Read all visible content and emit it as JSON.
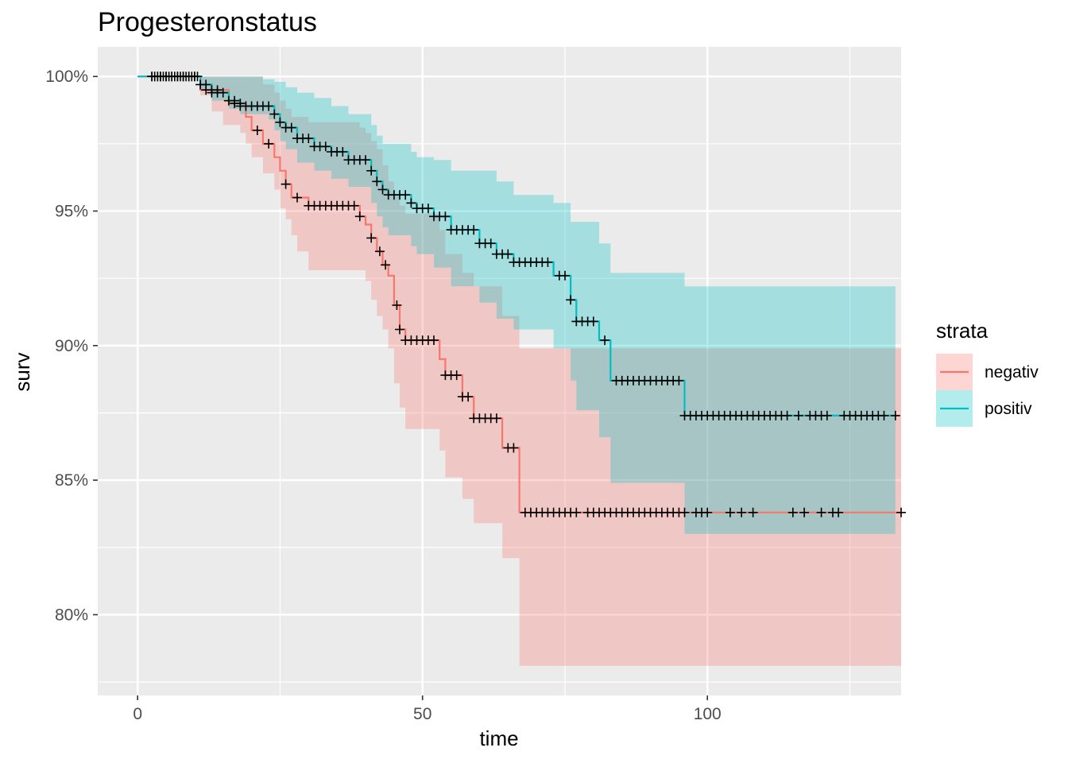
{
  "chart_data": {
    "type": "line",
    "title": "Progesteronstatus",
    "xlabel": "time",
    "ylabel": "surv",
    "xlim": [
      -7,
      134
    ],
    "ylim": [
      77,
      101.1
    ],
    "x_ticks": [
      {
        "value": 0,
        "label": "0"
      },
      {
        "value": 50,
        "label": "50"
      },
      {
        "value": 100,
        "label": "100"
      }
    ],
    "x_minor_ticks": [
      25,
      75,
      125
    ],
    "y_ticks": [
      {
        "value": 80,
        "label": "80%"
      },
      {
        "value": 85,
        "label": "85%"
      },
      {
        "value": 90,
        "label": "90%"
      },
      {
        "value": 95,
        "label": "95%"
      },
      {
        "value": 100,
        "label": "100%"
      }
    ],
    "y_minor_ticks": [
      77.5,
      82.5,
      87.5,
      92.5,
      97.5
    ],
    "grid": true,
    "legend": {
      "title": "strata",
      "position": "right",
      "entries": [
        {
          "label": "negativ",
          "color": "#F8766D"
        },
        {
          "label": "positiv",
          "color": "#00BFC4"
        }
      ]
    },
    "series": [
      {
        "name": "negativ",
        "color": "#F8766D",
        "survival": [
          [
            0,
            100
          ],
          [
            11,
            99.5
          ],
          [
            16,
            99
          ],
          [
            19,
            98.5
          ],
          [
            20,
            98
          ],
          [
            22,
            97.5
          ],
          [
            24,
            97
          ],
          [
            25,
            96.5
          ],
          [
            26,
            96
          ],
          [
            27,
            95.5
          ],
          [
            30,
            95.2
          ],
          [
            39,
            94.8
          ],
          [
            40,
            94.5
          ],
          [
            41,
            94
          ],
          [
            42,
            93.5
          ],
          [
            43,
            93
          ],
          [
            44,
            92.6
          ],
          [
            45,
            91.5
          ],
          [
            46,
            90.6
          ],
          [
            47,
            90.2
          ],
          [
            53,
            89.5
          ],
          [
            54,
            88.9
          ],
          [
            57,
            88.1
          ],
          [
            59,
            87.3
          ],
          [
            64,
            86.2
          ],
          [
            67,
            83.8
          ],
          [
            134,
            83.8
          ]
        ],
        "lower": [
          [
            0,
            100
          ],
          [
            11,
            99.3
          ],
          [
            13,
            98.7
          ],
          [
            15,
            98.2
          ],
          [
            18,
            97.9
          ],
          [
            19,
            97.5
          ],
          [
            20,
            97
          ],
          [
            22,
            96.4
          ],
          [
            24,
            95.8
          ],
          [
            25,
            95.1
          ],
          [
            26,
            94.7
          ],
          [
            27,
            94.1
          ],
          [
            28,
            93.5
          ],
          [
            30,
            92.8
          ],
          [
            40,
            92.4
          ],
          [
            41,
            91.7
          ],
          [
            42,
            91.1
          ],
          [
            43,
            90.6
          ],
          [
            44,
            89.9
          ],
          [
            45,
            88.6
          ],
          [
            46,
            87.7
          ],
          [
            47,
            86.9
          ],
          [
            53,
            86.1
          ],
          [
            54,
            85.1
          ],
          [
            57,
            84.3
          ],
          [
            59,
            83.4
          ],
          [
            64,
            82.1
          ],
          [
            67,
            78.1
          ],
          [
            134,
            78.1
          ]
        ],
        "upper": [
          [
            0,
            100
          ],
          [
            20,
            100
          ],
          [
            22,
            99.7
          ],
          [
            24,
            99.4
          ],
          [
            25,
            99.1
          ],
          [
            26,
            98.8
          ],
          [
            27,
            98.5
          ],
          [
            30,
            98.3
          ],
          [
            39,
            98.1
          ],
          [
            40,
            97.9
          ],
          [
            41,
            97.6
          ],
          [
            42,
            97.3
          ],
          [
            43,
            96.7
          ],
          [
            44,
            96.1
          ],
          [
            45,
            95.6
          ],
          [
            46,
            95.2
          ],
          [
            47,
            94.9
          ],
          [
            53,
            94.3
          ],
          [
            54,
            93.4
          ],
          [
            57,
            92.7
          ],
          [
            59,
            92.2
          ],
          [
            64,
            91.1
          ],
          [
            67,
            89.9
          ],
          [
            134,
            89.9
          ]
        ],
        "censored": [
          2.5,
          3,
          3.5,
          4,
          5,
          6,
          7,
          8,
          9,
          10,
          12,
          13,
          14,
          17,
          18,
          21,
          23,
          26,
          28,
          30,
          31,
          32,
          33,
          34,
          35,
          36,
          37,
          38,
          39,
          41,
          42.5,
          43.5,
          45.5,
          46,
          47,
          48,
          49,
          50,
          51,
          52,
          54,
          55,
          56,
          57,
          58,
          59,
          60,
          61,
          62,
          63,
          65,
          66,
          68,
          69,
          70,
          71,
          72,
          73,
          74,
          75,
          76,
          77,
          79,
          80,
          81,
          82,
          83,
          84,
          85,
          86,
          87,
          88,
          89,
          90,
          91,
          92,
          93,
          94,
          95,
          96,
          98,
          99,
          100,
          104,
          106,
          108,
          115,
          117,
          120,
          122,
          123,
          134
        ]
      },
      {
        "name": "positiv",
        "color": "#00BFC4",
        "survival": [
          [
            0,
            100
          ],
          [
            11,
            99.7
          ],
          [
            13,
            99.4
          ],
          [
            16,
            99.1
          ],
          [
            18,
            98.9
          ],
          [
            23,
            98.9
          ],
          [
            24,
            98.6
          ],
          [
            25,
            98.3
          ],
          [
            26,
            98.1
          ],
          [
            28,
            97.7
          ],
          [
            31,
            97.4
          ],
          [
            34,
            97.2
          ],
          [
            37,
            96.9
          ],
          [
            41,
            96.5
          ],
          [
            42,
            96.1
          ],
          [
            43,
            95.8
          ],
          [
            44,
            95.6
          ],
          [
            48,
            95.3
          ],
          [
            49,
            95.1
          ],
          [
            52,
            94.8
          ],
          [
            55,
            94.3
          ],
          [
            60,
            93.8
          ],
          [
            63,
            93.4
          ],
          [
            66,
            93.1
          ],
          [
            73,
            92.6
          ],
          [
            76,
            91.7
          ],
          [
            77,
            90.9
          ],
          [
            81,
            90.2
          ],
          [
            83,
            88.7
          ],
          [
            96,
            87.4
          ],
          [
            133,
            87.4
          ]
        ],
        "lower": [
          [
            0,
            100
          ],
          [
            11,
            99.5
          ],
          [
            13,
            99.1
          ],
          [
            16,
            98.8
          ],
          [
            18,
            98.6
          ],
          [
            23,
            98.4
          ],
          [
            24,
            98
          ],
          [
            25,
            97.6
          ],
          [
            26,
            97.3
          ],
          [
            28,
            96.8
          ],
          [
            31,
            96.5
          ],
          [
            34,
            96.2
          ],
          [
            37,
            95.9
          ],
          [
            41,
            95.3
          ],
          [
            42,
            94.8
          ],
          [
            43,
            94.4
          ],
          [
            44,
            94.1
          ],
          [
            48,
            93.7
          ],
          [
            49,
            93.4
          ],
          [
            52,
            92.9
          ],
          [
            55,
            92.2
          ],
          [
            60,
            91.6
          ],
          [
            63,
            91
          ],
          [
            66,
            90.6
          ],
          [
            73,
            89.9
          ],
          [
            76,
            88.7
          ],
          [
            77,
            87.6
          ],
          [
            81,
            86.6
          ],
          [
            83,
            84.9
          ],
          [
            96,
            83
          ],
          [
            133,
            83
          ]
        ],
        "upper": [
          [
            0,
            100
          ],
          [
            19,
            100
          ],
          [
            22,
            99.9
          ],
          [
            24,
            99.8
          ],
          [
            26,
            99.6
          ],
          [
            28,
            99.4
          ],
          [
            31,
            99.2
          ],
          [
            34,
            98.9
          ],
          [
            37,
            98.6
          ],
          [
            41,
            98.2
          ],
          [
            42,
            97.8
          ],
          [
            43,
            97.5
          ],
          [
            48,
            97.2
          ],
          [
            49,
            97
          ],
          [
            52,
            96.9
          ],
          [
            55,
            96.5
          ],
          [
            63,
            96.1
          ],
          [
            66,
            95.6
          ],
          [
            73,
            95.3
          ],
          [
            76,
            94.6
          ],
          [
            81,
            93.8
          ],
          [
            83,
            92.7
          ],
          [
            96,
            92.2
          ],
          [
            133,
            92.2
          ]
        ],
        "censored": [
          2.5,
          3,
          3.5,
          4,
          4.5,
          5,
          5.5,
          6,
          6.5,
          7,
          7.5,
          8,
          8.5,
          9,
          9.5,
          10,
          10.5,
          11,
          12,
          13,
          14,
          15,
          16,
          17,
          18,
          19,
          20,
          21,
          22,
          23,
          24,
          25,
          26,
          27,
          28,
          29,
          30,
          31,
          32,
          33,
          34,
          35,
          36,
          37,
          38,
          39,
          40,
          41,
          42,
          43,
          44,
          45,
          46,
          47,
          48,
          49,
          50,
          51,
          52,
          53,
          54,
          55,
          56,
          57,
          58,
          59,
          60,
          61,
          62,
          63,
          64,
          65,
          66,
          67,
          68,
          69,
          70,
          71,
          72,
          74,
          75,
          76,
          77,
          78,
          79,
          80,
          82,
          84,
          85,
          86,
          87,
          88,
          89,
          90,
          91,
          92,
          93,
          94,
          95,
          96,
          97,
          98,
          99,
          100,
          101,
          102,
          103,
          104,
          105,
          106,
          107,
          108,
          109,
          110,
          111,
          112,
          113,
          114,
          116,
          118,
          119,
          120,
          121,
          124,
          125,
          126,
          127,
          128,
          129,
          130,
          131,
          133
        ]
      }
    ]
  }
}
